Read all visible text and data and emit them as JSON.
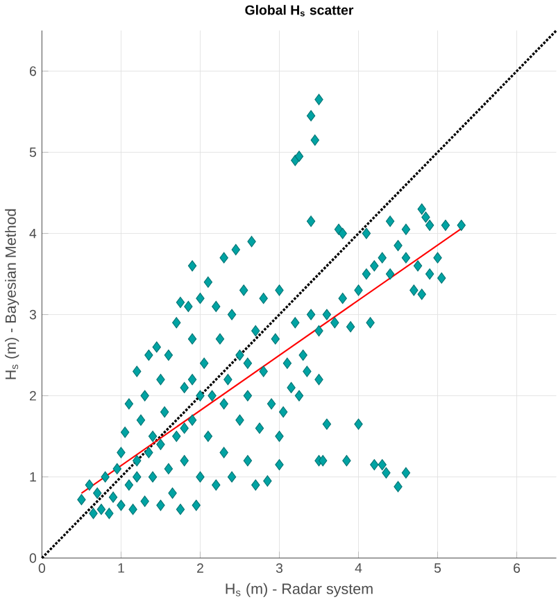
{
  "chart_data": {
    "type": "scatter",
    "title": "Global H$_{s}$ scatter",
    "xlabel": "H$_{s}$ (m) - Radar system",
    "ylabel": "H$_{s}$ (m) - Bayesian Method",
    "xlim": [
      0,
      6.5
    ],
    "ylim": [
      0,
      6.5
    ],
    "xticks": [
      0,
      1,
      2,
      3,
      4,
      5,
      6
    ],
    "yticks": [
      0,
      1,
      2,
      3,
      4,
      5,
      6
    ],
    "grid": true,
    "series": [
      {
        "color": "#00a3a3",
        "marker": "diamond",
        "x": [
          0.5,
          0.6,
          0.65,
          0.7,
          0.75,
          0.8,
          0.85,
          0.9,
          0.95,
          1.0,
          1.0,
          1.05,
          1.1,
          1.1,
          1.15,
          1.2,
          1.2,
          1.25,
          1.3,
          1.3,
          1.35,
          1.4,
          1.4,
          1.45,
          1.5,
          1.5,
          1.55,
          1.6,
          1.6,
          1.65,
          1.7,
          1.7,
          1.75,
          1.75,
          1.8,
          1.8,
          1.85,
          1.9,
          1.9,
          1.95,
          2.0,
          2.0,
          2.05,
          2.1,
          2.1,
          2.15,
          2.2,
          2.2,
          2.25,
          2.3,
          2.3,
          2.35,
          2.4,
          2.4,
          2.45,
          2.5,
          2.5,
          2.55,
          2.6,
          2.6,
          2.65,
          2.7,
          2.7,
          2.75,
          2.8,
          2.8,
          2.85,
          2.9,
          2.95,
          3.0,
          3.0,
          3.0,
          3.05,
          3.1,
          3.15,
          3.2,
          3.25,
          3.3,
          3.35,
          3.4,
          3.5,
          3.5,
          3.6,
          3.7,
          3.8,
          3.9,
          4.0,
          4.1,
          4.15,
          4.2,
          4.3,
          4.4,
          4.5,
          4.6,
          4.7,
          4.75,
          4.8,
          4.9,
          5.0,
          5.05,
          1.5,
          2.0,
          1.2,
          2.3,
          1.8,
          2.6,
          1.35,
          1.9,
          3.5,
          3.4,
          3.45,
          3.2,
          3.25,
          3.4,
          3.75,
          3.8,
          4.1,
          4.4,
          4.6,
          4.8,
          4.85,
          4.9,
          5.1,
          5.3,
          3.6,
          4.0,
          3.5,
          3.55,
          3.85,
          4.2,
          4.3,
          4.35,
          4.5,
          4.6,
          1.9
        ],
        "values": [
          0.72,
          0.9,
          0.55,
          0.8,
          0.6,
          1.0,
          0.55,
          0.75,
          1.1,
          0.65,
          1.3,
          1.55,
          0.9,
          1.9,
          0.6,
          1.2,
          2.3,
          1.7,
          0.7,
          2.0,
          2.5,
          1.0,
          1.5,
          2.6,
          0.65,
          2.2,
          1.8,
          1.1,
          2.5,
          0.8,
          1.5,
          2.9,
          3.15,
          0.6,
          2.1,
          1.2,
          3.1,
          1.7,
          2.7,
          0.65,
          3.2,
          1.0,
          2.4,
          1.5,
          3.4,
          2.0,
          3.1,
          0.9,
          2.7,
          1.3,
          3.7,
          2.2,
          3.0,
          1.0,
          3.8,
          1.7,
          2.5,
          3.3,
          1.2,
          2.0,
          3.9,
          2.8,
          0.9,
          1.6,
          2.3,
          3.2,
          0.95,
          1.9,
          2.7,
          1.15,
          1.5,
          3.3,
          1.8,
          2.4,
          2.1,
          2.9,
          2.0,
          2.5,
          2.3,
          3.0,
          2.2,
          2.8,
          3.0,
          2.9,
          3.2,
          2.85,
          3.3,
          3.5,
          2.9,
          3.6,
          3.7,
          3.5,
          3.85,
          3.7,
          3.3,
          3.6,
          3.25,
          3.5,
          3.7,
          3.45,
          1.4,
          2.0,
          1.0,
          1.9,
          1.6,
          2.4,
          1.3,
          2.2,
          5.65,
          5.45,
          5.15,
          4.9,
          4.95,
          4.15,
          4.05,
          4.0,
          4.0,
          4.15,
          4.05,
          4.3,
          4.2,
          4.1,
          4.1,
          4.1,
          1.65,
          1.65,
          1.2,
          1.2,
          1.2,
          1.15,
          1.15,
          1.05,
          0.88,
          1.05,
          3.6
        ]
      },
      {
        "type": "line",
        "color": "#000000",
        "line_style": "dotted",
        "marker": "none",
        "x": [
          0,
          6.5
        ],
        "values": [
          0,
          6.5
        ]
      },
      {
        "type": "line",
        "color": "#ff0000",
        "line_style": "solid",
        "marker": "none",
        "x": [
          0.5,
          5.3
        ],
        "values": [
          0.8,
          4.06
        ]
      }
    ]
  }
}
